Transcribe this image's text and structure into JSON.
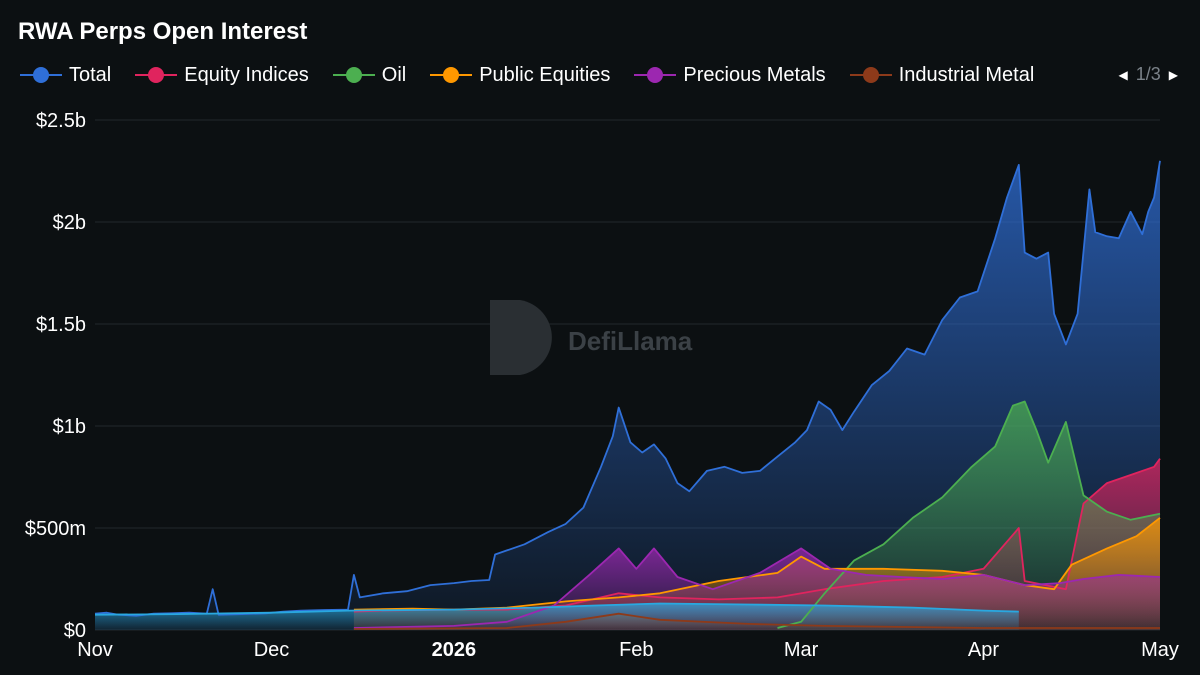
{
  "chart_data": {
    "type": "area",
    "title": "RWA Perps Open Interest",
    "legend_position": "top",
    "legend_pager": "1/3",
    "watermark": "DefiLlama",
    "ylim": [
      0,
      2.5
    ],
    "y_unit": "billions USD",
    "y_ticks": [
      {
        "value": 0,
        "label": "$0"
      },
      {
        "value": 0.5,
        "label": "$500m"
      },
      {
        "value": 1,
        "label": "$1b"
      },
      {
        "value": 1.5,
        "label": "$1.5b"
      },
      {
        "value": 2,
        "label": "$2b"
      },
      {
        "value": 2.5,
        "label": "$2.5b"
      }
    ],
    "x_range": [
      "2025-11-01",
      "2026-05-01"
    ],
    "x_ticks": [
      {
        "date": "2025-11-01",
        "label": "Nov",
        "bold": false
      },
      {
        "date": "2025-12-01",
        "label": "Dec",
        "bold": false
      },
      {
        "date": "2026-01-01",
        "label": "2026",
        "bold": true
      },
      {
        "date": "2026-02-01",
        "label": "Feb",
        "bold": false
      },
      {
        "date": "2026-03-01",
        "label": "Mar",
        "bold": false
      },
      {
        "date": "2026-04-01",
        "label": "Apr",
        "bold": false
      },
      {
        "date": "2026-05-01",
        "label": "May",
        "bold": false
      }
    ],
    "grid": true,
    "series": [
      {
        "name": "Total",
        "color": "#2f6fd8",
        "points": [
          [
            "2025-11-01",
            0.08
          ],
          [
            "2025-11-03",
            0.085
          ],
          [
            "2025-11-05",
            0.075
          ],
          [
            "2025-11-08",
            0.07
          ],
          [
            "2025-11-11",
            0.08
          ],
          [
            "2025-11-14",
            0.082
          ],
          [
            "2025-11-17",
            0.085
          ],
          [
            "2025-11-20",
            0.08
          ],
          [
            "2025-11-21",
            0.2
          ],
          [
            "2025-11-22",
            0.075
          ],
          [
            "2025-11-26",
            0.078
          ],
          [
            "2025-11-30",
            0.082
          ],
          [
            "2025-12-03",
            0.09
          ],
          [
            "2025-12-06",
            0.095
          ],
          [
            "2025-12-10",
            0.098
          ],
          [
            "2025-12-14",
            0.1
          ],
          [
            "2025-12-15",
            0.27
          ],
          [
            "2025-12-16",
            0.16
          ],
          [
            "2025-12-20",
            0.18
          ],
          [
            "2025-12-24",
            0.19
          ],
          [
            "2025-12-28",
            0.22
          ],
          [
            "2026-01-01",
            0.23
          ],
          [
            "2026-01-04",
            0.24
          ],
          [
            "2026-01-07",
            0.245
          ],
          [
            "2026-01-08",
            0.37
          ],
          [
            "2026-01-10",
            0.39
          ],
          [
            "2026-01-13",
            0.42
          ],
          [
            "2026-01-17",
            0.48
          ],
          [
            "2026-01-20",
            0.52
          ],
          [
            "2026-01-23",
            0.6
          ],
          [
            "2026-01-26",
            0.8
          ],
          [
            "2026-01-28",
            0.95
          ],
          [
            "2026-01-29",
            1.09
          ],
          [
            "2026-01-31",
            0.92
          ],
          [
            "2026-02-02",
            0.87
          ],
          [
            "2026-02-04",
            0.91
          ],
          [
            "2026-02-06",
            0.84
          ],
          [
            "2026-02-08",
            0.72
          ],
          [
            "2026-02-10",
            0.68
          ],
          [
            "2026-02-13",
            0.78
          ],
          [
            "2026-02-16",
            0.8
          ],
          [
            "2026-02-19",
            0.77
          ],
          [
            "2026-02-22",
            0.78
          ],
          [
            "2026-02-25",
            0.85
          ],
          [
            "2026-02-28",
            0.92
          ],
          [
            "2026-03-02",
            0.98
          ],
          [
            "2026-03-04",
            1.12
          ],
          [
            "2026-03-06",
            1.08
          ],
          [
            "2026-03-08",
            0.98
          ],
          [
            "2026-03-10",
            1.07
          ],
          [
            "2026-03-13",
            1.2
          ],
          [
            "2026-03-16",
            1.27
          ],
          [
            "2026-03-19",
            1.38
          ],
          [
            "2026-03-22",
            1.35
          ],
          [
            "2026-03-25",
            1.52
          ],
          [
            "2026-03-28",
            1.63
          ],
          [
            "2026-03-31",
            1.66
          ],
          [
            "2026-04-03",
            1.92
          ],
          [
            "2026-04-05",
            2.12
          ],
          [
            "2026-04-07",
            2.28
          ],
          [
            "2026-04-08",
            1.85
          ],
          [
            "2026-04-10",
            1.82
          ],
          [
            "2026-04-12",
            1.85
          ],
          [
            "2026-04-13",
            1.55
          ],
          [
            "2026-04-15",
            1.4
          ],
          [
            "2026-04-17",
            1.55
          ],
          [
            "2026-04-19",
            2.16
          ],
          [
            "2026-04-20",
            1.95
          ],
          [
            "2026-04-22",
            1.93
          ],
          [
            "2026-04-24",
            1.92
          ],
          [
            "2026-04-26",
            2.05
          ],
          [
            "2026-04-28",
            1.94
          ],
          [
            "2026-04-29",
            2.05
          ],
          [
            "2026-04-30",
            2.12
          ],
          [
            "2026-05-01",
            2.3
          ]
        ]
      },
      {
        "name": "Equity Indices",
        "color": "#e0245e",
        "points": [
          [
            "2025-12-15",
            0.09
          ],
          [
            "2025-12-20",
            0.095
          ],
          [
            "2026-01-01",
            0.1
          ],
          [
            "2026-01-10",
            0.1
          ],
          [
            "2026-01-20",
            0.12
          ],
          [
            "2026-01-29",
            0.18
          ],
          [
            "2026-02-05",
            0.16
          ],
          [
            "2026-02-15",
            0.15
          ],
          [
            "2026-02-25",
            0.16
          ],
          [
            "2026-03-05",
            0.2
          ],
          [
            "2026-03-15",
            0.24
          ],
          [
            "2026-03-25",
            0.26
          ],
          [
            "2026-04-01",
            0.3
          ],
          [
            "2026-04-07",
            0.5
          ],
          [
            "2026-04-08",
            0.24
          ],
          [
            "2026-04-15",
            0.2
          ],
          [
            "2026-04-18",
            0.62
          ],
          [
            "2026-04-22",
            0.72
          ],
          [
            "2026-04-26",
            0.76
          ],
          [
            "2026-04-30",
            0.8
          ],
          [
            "2026-05-01",
            0.84
          ]
        ]
      },
      {
        "name": "Oil",
        "color": "#4caf50",
        "points": [
          [
            "2026-02-25",
            0.01
          ],
          [
            "2026-03-01",
            0.04
          ],
          [
            "2026-03-05",
            0.18
          ],
          [
            "2026-03-10",
            0.34
          ],
          [
            "2026-03-15",
            0.42
          ],
          [
            "2026-03-20",
            0.55
          ],
          [
            "2026-03-25",
            0.65
          ],
          [
            "2026-03-30",
            0.8
          ],
          [
            "2026-04-03",
            0.9
          ],
          [
            "2026-04-06",
            1.1
          ],
          [
            "2026-04-08",
            1.12
          ],
          [
            "2026-04-10",
            0.98
          ],
          [
            "2026-04-12",
            0.82
          ],
          [
            "2026-04-15",
            1.02
          ],
          [
            "2026-04-18",
            0.66
          ],
          [
            "2026-04-22",
            0.58
          ],
          [
            "2026-04-26",
            0.54
          ],
          [
            "2026-05-01",
            0.57
          ]
        ]
      },
      {
        "name": "Public Equities",
        "color": "#ff9800",
        "points": [
          [
            "2025-12-15",
            0.1
          ],
          [
            "2025-12-25",
            0.105
          ],
          [
            "2026-01-01",
            0.1
          ],
          [
            "2026-01-10",
            0.11
          ],
          [
            "2026-01-20",
            0.14
          ],
          [
            "2026-01-29",
            0.16
          ],
          [
            "2026-02-05",
            0.18
          ],
          [
            "2026-02-15",
            0.24
          ],
          [
            "2026-02-25",
            0.28
          ],
          [
            "2026-03-01",
            0.36
          ],
          [
            "2026-03-05",
            0.3
          ],
          [
            "2026-03-15",
            0.3
          ],
          [
            "2026-03-25",
            0.29
          ],
          [
            "2026-04-01",
            0.27
          ],
          [
            "2026-04-08",
            0.22
          ],
          [
            "2026-04-13",
            0.2
          ],
          [
            "2026-04-16",
            0.32
          ],
          [
            "2026-04-22",
            0.4
          ],
          [
            "2026-04-27",
            0.46
          ],
          [
            "2026-05-01",
            0.55
          ]
        ]
      },
      {
        "name": "Precious Metals",
        "color": "#9c27b0",
        "points": [
          [
            "2025-12-15",
            0.01
          ],
          [
            "2026-01-01",
            0.02
          ],
          [
            "2026-01-10",
            0.04
          ],
          [
            "2026-01-18",
            0.12
          ],
          [
            "2026-01-24",
            0.27
          ],
          [
            "2026-01-29",
            0.4
          ],
          [
            "2026-02-01",
            0.3
          ],
          [
            "2026-02-04",
            0.4
          ],
          [
            "2026-02-08",
            0.26
          ],
          [
            "2026-02-14",
            0.2
          ],
          [
            "2026-02-22",
            0.28
          ],
          [
            "2026-03-01",
            0.4
          ],
          [
            "2026-03-06",
            0.3
          ],
          [
            "2026-03-12",
            0.27
          ],
          [
            "2026-03-18",
            0.26
          ],
          [
            "2026-03-25",
            0.25
          ],
          [
            "2026-04-01",
            0.27
          ],
          [
            "2026-04-08",
            0.22
          ],
          [
            "2026-04-14",
            0.23
          ],
          [
            "2026-04-18",
            0.25
          ],
          [
            "2026-04-24",
            0.27
          ],
          [
            "2026-05-01",
            0.26
          ]
        ]
      },
      {
        "name": "Industrial Metal",
        "color": "#8d3a1a",
        "points": [
          [
            "2025-12-15",
            0.005
          ],
          [
            "2026-01-10",
            0.01
          ],
          [
            "2026-01-20",
            0.04
          ],
          [
            "2026-01-29",
            0.08
          ],
          [
            "2026-02-05",
            0.05
          ],
          [
            "2026-02-20",
            0.03
          ],
          [
            "2026-03-05",
            0.02
          ],
          [
            "2026-04-01",
            0.01
          ],
          [
            "2026-05-01",
            0.01
          ]
        ]
      },
      {
        "name": "",
        "color": "#29a8e0",
        "points": [
          [
            "2025-11-01",
            0.075
          ],
          [
            "2025-11-15",
            0.078
          ],
          [
            "2025-12-01",
            0.085
          ],
          [
            "2025-12-14",
            0.095
          ],
          [
            "2026-01-01",
            0.1
          ],
          [
            "2026-01-15",
            0.11
          ],
          [
            "2026-01-25",
            0.12
          ],
          [
            "2026-02-05",
            0.13
          ],
          [
            "2026-02-20",
            0.125
          ],
          [
            "2026-03-05",
            0.12
          ],
          [
            "2026-03-20",
            0.11
          ],
          [
            "2026-04-01",
            0.095
          ],
          [
            "2026-04-07",
            0.09
          ]
        ]
      }
    ]
  }
}
